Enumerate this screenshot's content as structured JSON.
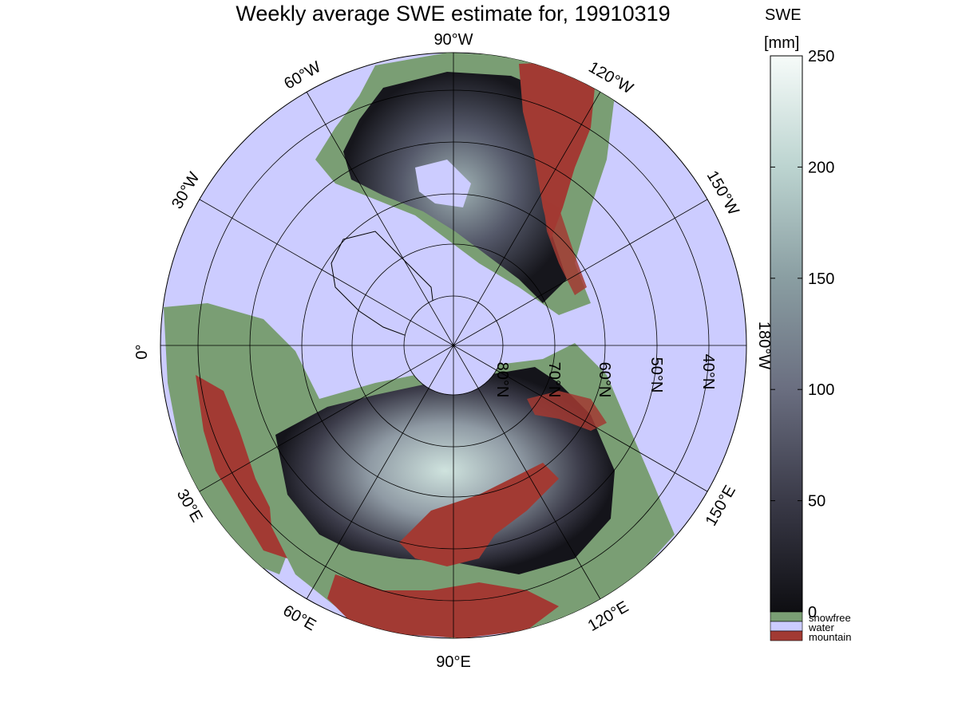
{
  "title": "Weekly average SWE estimate for, 19910319",
  "colorbar": {
    "label_top": "SWE",
    "label_unit": "[mm]",
    "ticks": [
      "0",
      "50",
      "100",
      "150",
      "200",
      "250"
    ],
    "min": 0,
    "max": 250
  },
  "longitude_labels": {
    "lon_90W": "90°W",
    "lon_60W": "60°W",
    "lon_30W": "30°W",
    "lon_0": "0°",
    "lon_120W": "120°W",
    "lon_150W": "150°W",
    "lon_180W": "180°W",
    "lon_150E": "150°E",
    "lon_120E": "120°E",
    "lon_90E": "90°E",
    "lon_60E": "60°E",
    "lon_30E": "30°E"
  },
  "latitude_labels": {
    "lat_80N": "80°N",
    "lat_70N": "70°N",
    "lat_60N": "60°N",
    "lat_50N": "50°N",
    "lat_40N": "40°N"
  },
  "legend": [
    {
      "label": "snowfree",
      "color": "#7a9e74"
    },
    {
      "label": "water",
      "color": "#ccccff"
    },
    {
      "label": "mountain",
      "color": "#a23a33"
    }
  ],
  "colors": {
    "ocean": "#ccccff",
    "snowfree": "#7a9e74",
    "mountain": "#a23a33",
    "swe_low": "#0e0e12",
    "swe_high": "#f6fbf9"
  }
}
